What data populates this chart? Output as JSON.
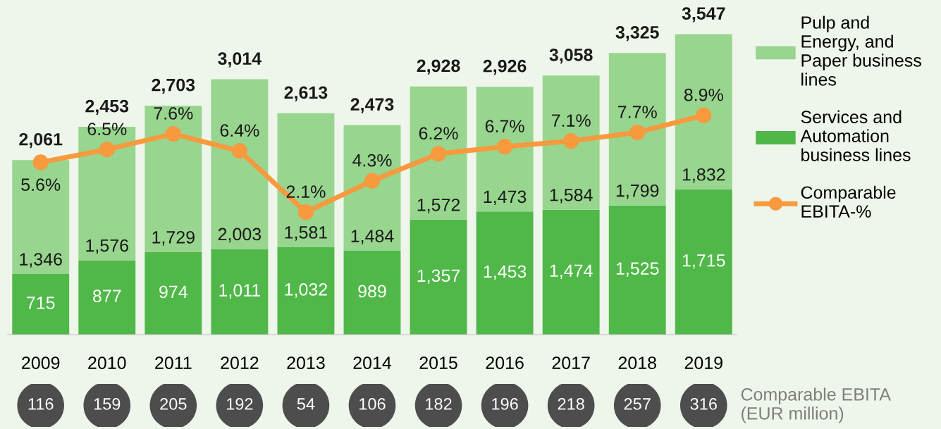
{
  "chart_data": [
    {
      "type": "bar",
      "stacked": true,
      "tick_labels": "x",
      "legend": "right",
      "marker": "circle",
      "line_style": "solid",
      "categories": [
        "2009",
        "2010",
        "2011",
        "2012",
        "2013",
        "2014",
        "2015",
        "2016",
        "2017",
        "2018",
        "2019"
      ],
      "ylim": [
        0,
        3950
      ],
      "y2lim": [
        -6.5,
        17
      ],
      "series": [
        {
          "name": "Services and\nAutomation\nbusiness lines",
          "color": "#50b848",
          "values": [
            715,
            877,
            974,
            1011,
            1032,
            989,
            1357,
            1453,
            1474,
            1525,
            1715
          ],
          "value_labels": [
            "715",
            "877",
            "974",
            "1,011",
            "1,032",
            "989",
            "1,357",
            "1,453",
            "1,474",
            "1,525",
            "1,715"
          ]
        },
        {
          "name": "Pulp and\nEnergy, and\nPaper business\nlines",
          "color": "#98d58e",
          "values": [
            1346,
            1576,
            1729,
            2003,
            1581,
            1484,
            1572,
            1473,
            1584,
            1799,
            1832
          ],
          "value_labels": [
            "1,346",
            "1,576",
            "1,729",
            "2,003",
            "1,581",
            "1,484",
            "1,572",
            "1,473",
            "1,584",
            "1,799",
            "1,832"
          ]
        },
        {
          "name": "Comparable\nEBITA-%",
          "type": "line",
          "axis": "y2",
          "color": "#f79a3e",
          "values": [
            5.6,
            6.5,
            7.6,
            6.4,
            2.1,
            4.3,
            6.2,
            6.7,
            7.1,
            7.7,
            8.9
          ],
          "value_labels": [
            "5.6%",
            "6.5%",
            "7.6%",
            "6.4%",
            "2.1%",
            "4.3%",
            "6.2%",
            "6.7%",
            "7.1%",
            "7.7%",
            "8.9%"
          ]
        }
      ],
      "totals": [
        "2,061",
        "2,453",
        "2,703",
        "3,014",
        "2,613",
        "2,473",
        "2,928",
        "2,926",
        "3,058",
        "3,325",
        "3,547"
      ]
    },
    {
      "type": "other",
      "title": "Comparable EBITA\n(EUR million)",
      "data_labels": true,
      "color": "#4d4d4d",
      "categories": [
        null,
        null,
        null,
        null,
        null,
        null,
        null,
        null,
        null,
        null,
        null
      ],
      "values": [
        116,
        159,
        205,
        192,
        54,
        106,
        182,
        196,
        218,
        257,
        316
      ]
    }
  ]
}
